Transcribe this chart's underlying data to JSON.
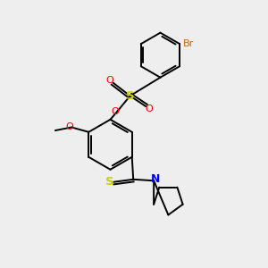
{
  "bg_color": "#eeeeee",
  "bond_color": "#000000",
  "atom_colors": {
    "O": "#ff0000",
    "S_sulfonate": "#cccc00",
    "S_thio": "#cccc00",
    "N": "#0000ff",
    "Br": "#cc6600",
    "C": "#000000"
  },
  "figsize": [
    3.0,
    3.0
  ],
  "dpi": 100
}
